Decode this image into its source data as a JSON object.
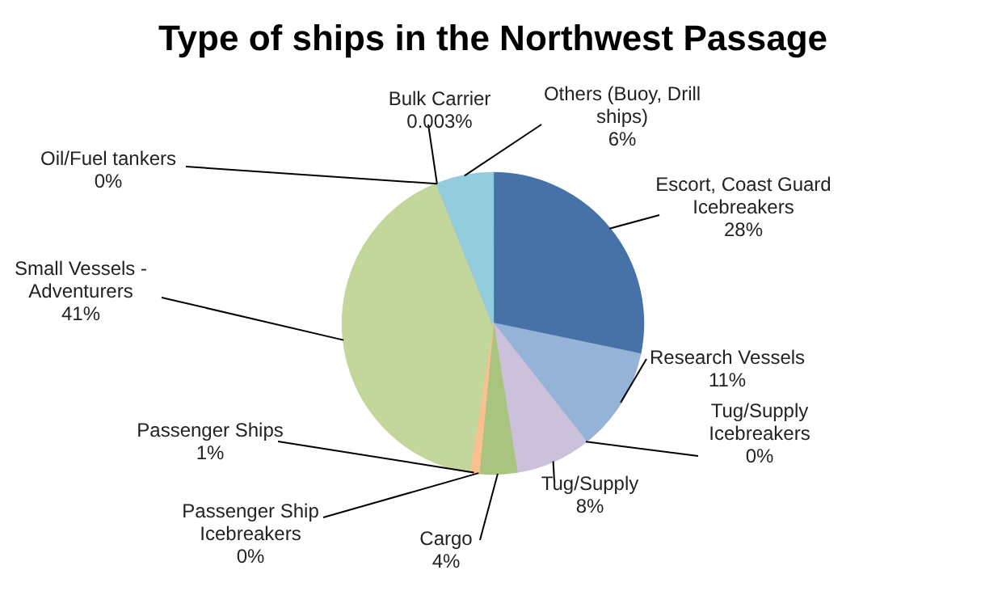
{
  "chart_data": {
    "type": "pie",
    "title": "Type of ships in the Northwest Passage",
    "categories": [
      "Escort, Coast Guard Icebreakers",
      "Research Vessels",
      "Tug/Supply Icebreakers",
      "Tug/Supply",
      "Cargo",
      "Passenger Ship Icebreakers",
      "Passenger Ships",
      "Small Vessels - Adventurers",
      "Oil/Fuel tankers",
      "Bulk Carrier",
      "Others (Buoy, Drill ships)"
    ],
    "values": [
      28,
      11,
      0,
      8,
      4,
      0,
      1,
      41,
      0,
      0.003,
      6
    ],
    "value_labels": [
      "28%",
      "11%",
      "0%",
      "8%",
      "4%",
      "0%",
      "1%",
      "41%",
      "0%",
      "0.003%",
      "6%"
    ],
    "colors": [
      "#4672a8",
      "#95b3d7",
      "#7f64a2",
      "#ccc1da",
      "#a9c47f",
      "#f2a56e",
      "#fac090",
      "#c3d69b",
      "#d99694",
      "#b7b7b7",
      "#93cddd"
    ]
  }
}
